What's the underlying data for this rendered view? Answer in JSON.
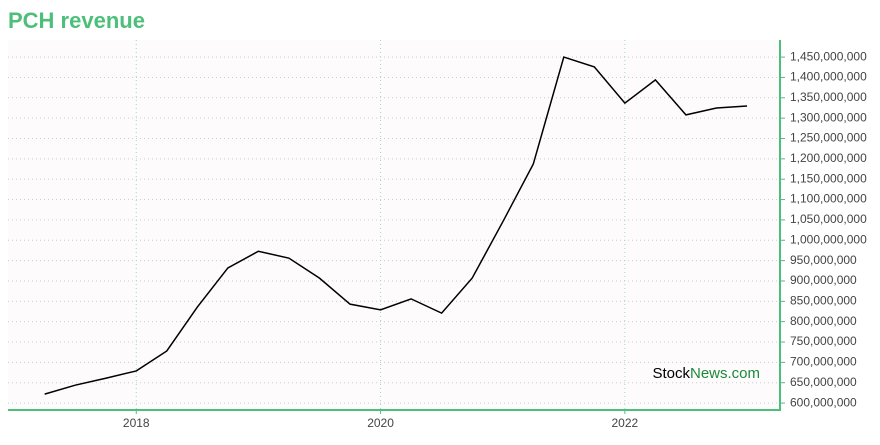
{
  "chart_data": {
    "type": "line",
    "title": "PCH revenue",
    "watermark": [
      "Stock",
      "News.com"
    ],
    "x": [
      2017.25,
      2017.5,
      2017.75,
      2018,
      2018.25,
      2018.5,
      2018.75,
      2019,
      2019.25,
      2019.5,
      2019.75,
      2020,
      2020.25,
      2020.5,
      2020.75,
      2021,
      2021.25,
      2021.5,
      2021.75,
      2022,
      2022.25,
      2022.5,
      2022.75,
      2023
    ],
    "series": [
      {
        "name": "revenue",
        "color": "#000000",
        "values": [
          622000000,
          644000000,
          661000000,
          679000000,
          728000000,
          836000000,
          932000000,
          973000000,
          956000000,
          907000000,
          843000000,
          829000000,
          856000000,
          821000000,
          907000000,
          1045000000,
          1187000000,
          1450000000,
          1426000000,
          1337000000,
          1394000000,
          1308000000,
          1325000000,
          1330000000
        ]
      }
    ],
    "xlim": [
      2016.95,
      2023.27
    ],
    "xticks": [
      2018,
      2020,
      2022
    ],
    "ylim": [
      583000000,
      1492000000
    ],
    "yticks": [
      {
        "value": 600000000,
        "label": "600,000,000"
      },
      {
        "value": 650000000,
        "label": "650,000,000"
      },
      {
        "value": 700000000,
        "label": "700,000,000"
      },
      {
        "value": 750000000,
        "label": "750,000,000"
      },
      {
        "value": 800000000,
        "label": "800,000,000"
      },
      {
        "value": 850000000,
        "label": "850,000,000"
      },
      {
        "value": 900000000,
        "label": "900,000,000"
      },
      {
        "value": 950000000,
        "label": "950,000,000"
      },
      {
        "value": 1000000000,
        "label": "1,000,000,000"
      },
      {
        "value": 1050000000,
        "label": "1,050,000,000"
      },
      {
        "value": 1100000000,
        "label": "1,100,000,000"
      },
      {
        "value": 1150000000,
        "label": "1,150,000,000"
      },
      {
        "value": 1200000000,
        "label": "1,200,000,000"
      },
      {
        "value": 1250000000,
        "label": "1,250,000,000"
      },
      {
        "value": 1300000000,
        "label": "1,300,000,000"
      },
      {
        "value": 1350000000,
        "label": "1,350,000,000"
      },
      {
        "value": 1400000000,
        "label": "1,400,000,000"
      },
      {
        "value": 1450000000,
        "label": "1,450,000,000"
      }
    ],
    "grid": true
  }
}
